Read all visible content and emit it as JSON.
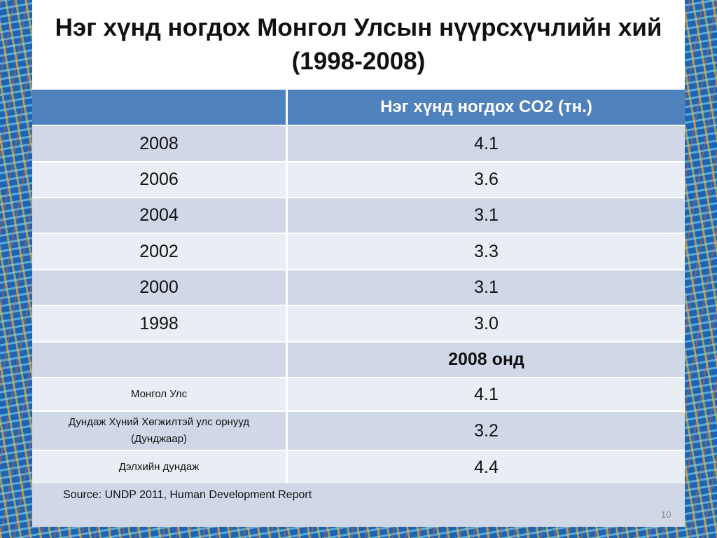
{
  "title": "Нэг хүнд ногдох Монгол Улсын нүүрсхүчлийн хий\n(1998-2008)",
  "table": {
    "header": [
      "",
      "Нэг хүнд ногдох CO2 (тн.)"
    ],
    "rows": [
      [
        "2008",
        "4.1"
      ],
      [
        "2006",
        "3.6"
      ],
      [
        "2004",
        "3.1"
      ],
      [
        "2002",
        "3.3"
      ],
      [
        "2000",
        "3.1"
      ],
      [
        "1998",
        "3.0"
      ],
      [
        "",
        "2008 онд"
      ],
      [
        "Монгол  Улс",
        "4.1"
      ],
      [
        "Дундаж Хүний Хөгжилтэй улс орнууд\n(Дунджаар)",
        "3.2"
      ],
      [
        "Дэлхийн дундаж",
        "4.4"
      ]
    ]
  },
  "source": "Source: UNDP 2011, Human Development Report",
  "page_number": "10"
}
